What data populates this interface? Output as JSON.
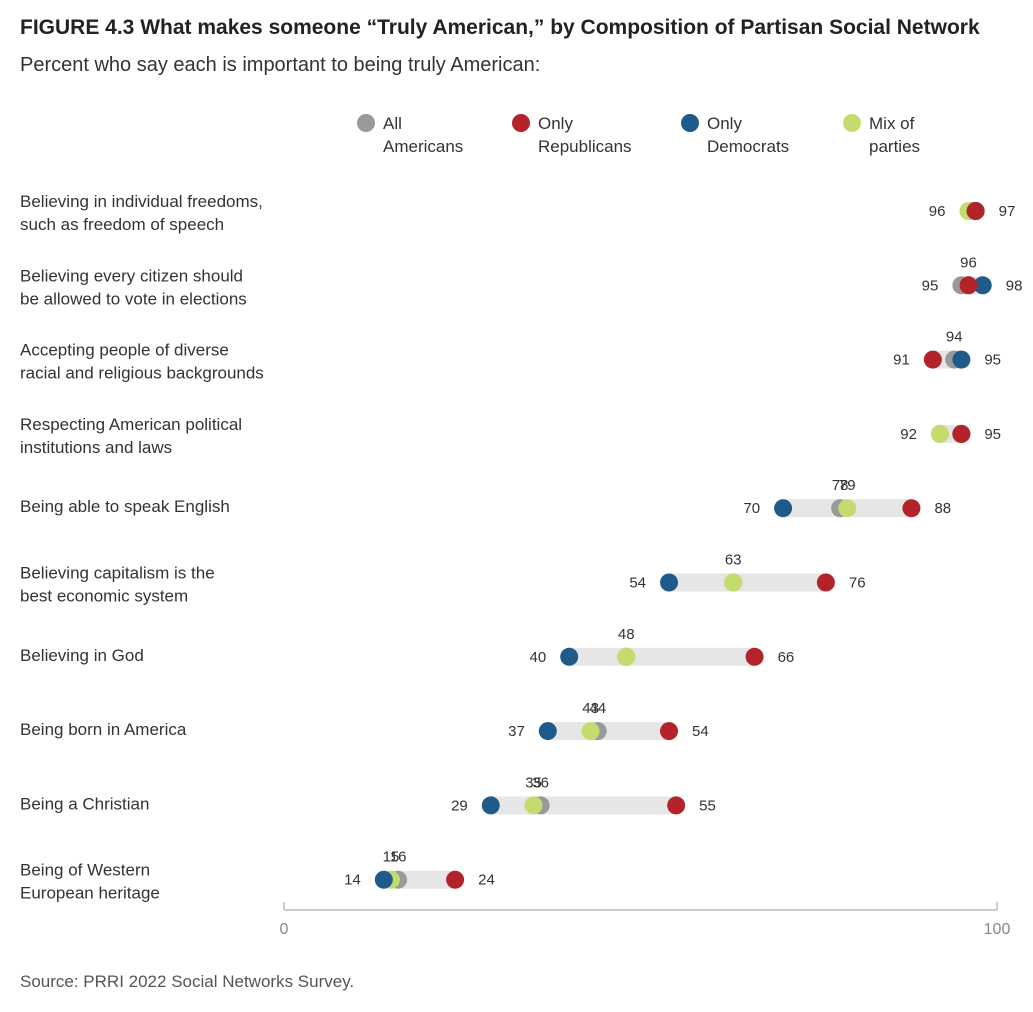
{
  "title": "FIGURE 4.3  What makes someone “Truly American,” by Composition of Partisan Social Network",
  "subtitle": "Percent who say each is important to being truly American:",
  "source": "Source: PRRI 2022 Social Networks Survey.",
  "colors": {
    "all": "#999999",
    "republicans": "#b5232a",
    "democrats": "#1f5b8a",
    "mix": "#c4dc6e",
    "range": "#e6e6e6",
    "axis": "#cccccc"
  },
  "legend": [
    {
      "key": "all",
      "lines": [
        "All",
        "Americans"
      ]
    },
    {
      "key": "republicans",
      "lines": [
        "Only",
        "Republicans"
      ]
    },
    {
      "key": "democrats",
      "lines": [
        "Only",
        "Democrats"
      ]
    },
    {
      "key": "mix",
      "lines": [
        "Mix of",
        "parties"
      ]
    }
  ],
  "chart_data": {
    "type": "dot",
    "xlim": [
      0,
      100
    ],
    "ticks": [
      0,
      100
    ],
    "series": [
      {
        "key": "all",
        "name": "All Americans"
      },
      {
        "key": "republicans",
        "name": "Only Republicans"
      },
      {
        "key": "democrats",
        "name": "Only Democrats"
      },
      {
        "key": "mix",
        "name": "Mix of parties"
      }
    ],
    "categories": [
      {
        "label": [
          "Believing in individual freedoms,",
          "such as freedom of speech"
        ],
        "values": {
          "all": 97,
          "republicans": 97,
          "democrats": 97,
          "mix": 96
        }
      },
      {
        "label": [
          "Believing every citizen should",
          "be allowed to vote in elections"
        ],
        "values": {
          "all": 95,
          "republicans": 96,
          "democrats": 98,
          "mix": 96
        }
      },
      {
        "label": [
          "Accepting people of diverse",
          "racial and religious backgrounds"
        ],
        "values": {
          "all": 94,
          "republicans": 91,
          "democrats": 95,
          "mix": 95
        }
      },
      {
        "label": [
          "Respecting American political",
          "institutions and laws"
        ],
        "values": {
          "all": 92,
          "republicans": 95,
          "democrats": 95,
          "mix": 92
        }
      },
      {
        "label": [
          "Being able to speak English"
        ],
        "values": {
          "all": 78,
          "republicans": 88,
          "democrats": 70,
          "mix": 79
        }
      },
      {
        "label": [
          "Believing capitalism is the",
          "best economic system"
        ],
        "values": {
          "all": 63,
          "republicans": 76,
          "democrats": 54,
          "mix": 63
        }
      },
      {
        "label": [
          "Believing in God"
        ],
        "values": {
          "all": 48,
          "republicans": 66,
          "democrats": 40,
          "mix": 48
        }
      },
      {
        "label": [
          "Being born in America"
        ],
        "values": {
          "all": 44,
          "republicans": 54,
          "democrats": 37,
          "mix": 43
        }
      },
      {
        "label": [
          "Being a Christian"
        ],
        "values": {
          "all": 36,
          "republicans": 55,
          "democrats": 29,
          "mix": 35
        }
      },
      {
        "label": [
          "Being of Western",
          "European heritage"
        ],
        "values": {
          "all": 16,
          "republicans": 24,
          "democrats": 14,
          "mix": 15
        }
      }
    ],
    "value_labels": [
      [
        {
          "text": "96",
          "pos": "left"
        },
        {
          "text": "97",
          "pos": "right"
        }
      ],
      [
        {
          "text": "95",
          "pos": "left"
        },
        {
          "text": "96",
          "pos": "above"
        },
        {
          "text": "98",
          "pos": "right"
        }
      ],
      [
        {
          "text": "91",
          "pos": "left"
        },
        {
          "text": "94",
          "pos": "above"
        },
        {
          "text": "95",
          "pos": "right"
        }
      ],
      [
        {
          "text": "92",
          "pos": "left"
        },
        {
          "text": "95",
          "pos": "right"
        }
      ],
      [
        {
          "text": "70",
          "pos": "left"
        },
        {
          "text": "78",
          "pos": "above",
          "at": 78
        },
        {
          "text": "79",
          "pos": "above",
          "at": 79
        },
        {
          "text": "88",
          "pos": "right"
        }
      ],
      [
        {
          "text": "54",
          "pos": "left"
        },
        {
          "text": "63",
          "pos": "above",
          "at": 63
        },
        {
          "text": "76",
          "pos": "right"
        }
      ],
      [
        {
          "text": "40",
          "pos": "left"
        },
        {
          "text": "48",
          "pos": "above",
          "at": 48
        },
        {
          "text": "66",
          "pos": "right"
        }
      ],
      [
        {
          "text": "37",
          "pos": "left"
        },
        {
          "text": "43",
          "pos": "above",
          "at": 43
        },
        {
          "text": "44",
          "pos": "above",
          "at": 44
        },
        {
          "text": "54",
          "pos": "right"
        }
      ],
      [
        {
          "text": "29",
          "pos": "left"
        },
        {
          "text": "35",
          "pos": "above",
          "at": 35
        },
        {
          "text": "36",
          "pos": "above",
          "at": 36
        },
        {
          "text": "55",
          "pos": "right"
        }
      ],
      [
        {
          "text": "14",
          "pos": "left"
        },
        {
          "text": "15",
          "pos": "above",
          "at": 15
        },
        {
          "text": "16",
          "pos": "above",
          "at": 16
        },
        {
          "text": "24",
          "pos": "right"
        }
      ]
    ]
  }
}
